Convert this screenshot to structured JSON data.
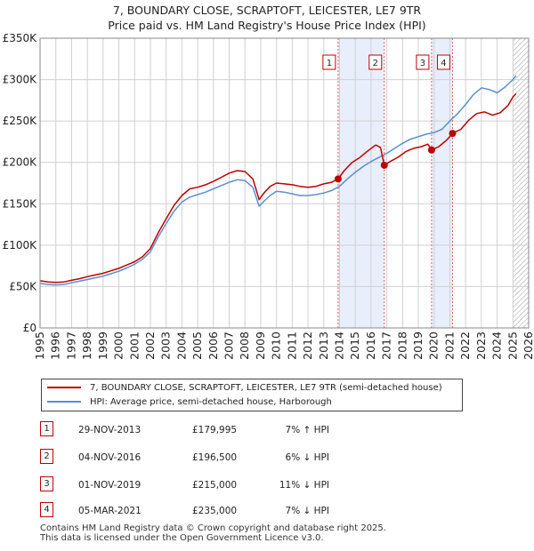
{
  "title_line1": "7, BOUNDARY CLOSE, SCRAPTOFT, LEICESTER, LE7 9TR",
  "title_line2": "Price paid vs. HM Land Registry's House Price Index (HPI)",
  "colors": {
    "property": "#c00000",
    "hpi": "#5b8fd0",
    "band": "#e8eefb",
    "marker_line": "#e06060",
    "grid": "#d0d0d0"
  },
  "chart_data": {
    "type": "line",
    "xlim": [
      1995,
      2026
    ],
    "ylim": [
      0,
      350000
    ],
    "x_ticks": [
      "1995",
      "1996",
      "1997",
      "1998",
      "1999",
      "2000",
      "2001",
      "2002",
      "2003",
      "2004",
      "2005",
      "2006",
      "2007",
      "2008",
      "2009",
      "2010",
      "2011",
      "2012",
      "2013",
      "2014",
      "2015",
      "2016",
      "2017",
      "2018",
      "2019",
      "2020",
      "2021",
      "2022",
      "2023",
      "2024",
      "2025",
      "2026"
    ],
    "y_ticks": [
      {
        "value": 0,
        "label": "£0"
      },
      {
        "value": 50000,
        "label": "£50K"
      },
      {
        "value": 100000,
        "label": "£100K"
      },
      {
        "value": 150000,
        "label": "£150K"
      },
      {
        "value": 200000,
        "label": "£200K"
      },
      {
        "value": 250000,
        "label": "£250K"
      },
      {
        "value": 300000,
        "label": "£300K"
      },
      {
        "value": 350000,
        "label": "£350K"
      }
    ],
    "series": [
      {
        "name": "7, BOUNDARY CLOSE, SCRAPTOFT, LEICESTER, LE7 9TR (semi-detached house)",
        "color": "#c00000",
        "points": [
          [
            1995.0,
            57000
          ],
          [
            1995.5,
            55500
          ],
          [
            1996.0,
            55000
          ],
          [
            1996.5,
            55500
          ],
          [
            1997.0,
            57500
          ],
          [
            1997.5,
            59500
          ],
          [
            1998.0,
            62000
          ],
          [
            1998.5,
            64000
          ],
          [
            1999.0,
            66000
          ],
          [
            1999.5,
            69000
          ],
          [
            2000.0,
            72000
          ],
          [
            2000.5,
            76000
          ],
          [
            2001.0,
            80000
          ],
          [
            2001.5,
            86000
          ],
          [
            2002.0,
            96000
          ],
          [
            2002.5,
            115000
          ],
          [
            2003.0,
            132000
          ],
          [
            2003.5,
            148000
          ],
          [
            2004.0,
            160000
          ],
          [
            2004.5,
            168000
          ],
          [
            2005.0,
            170000
          ],
          [
            2005.5,
            173000
          ],
          [
            2006.0,
            177000
          ],
          [
            2006.5,
            182000
          ],
          [
            2007.0,
            187000
          ],
          [
            2007.5,
            190000
          ],
          [
            2008.0,
            189000
          ],
          [
            2008.5,
            180000
          ],
          [
            2008.9,
            155000
          ],
          [
            2009.2,
            163000
          ],
          [
            2009.6,
            171000
          ],
          [
            2010.0,
            175000
          ],
          [
            2010.5,
            174000
          ],
          [
            2011.0,
            173000
          ],
          [
            2011.5,
            171000
          ],
          [
            2012.0,
            170000
          ],
          [
            2012.5,
            171000
          ],
          [
            2013.0,
            174000
          ],
          [
            2013.5,
            176000
          ],
          [
            2013.91,
            179995
          ],
          [
            2014.3,
            190000
          ],
          [
            2014.8,
            200000
          ],
          [
            2015.3,
            206000
          ],
          [
            2015.8,
            214000
          ],
          [
            2016.3,
            221000
          ],
          [
            2016.6,
            218000
          ],
          [
            2016.84,
            196500
          ],
          [
            2017.2,
            201000
          ],
          [
            2017.7,
            206000
          ],
          [
            2018.2,
            213000
          ],
          [
            2018.7,
            217000
          ],
          [
            2019.2,
            219000
          ],
          [
            2019.6,
            222000
          ],
          [
            2019.84,
            215000
          ],
          [
            2020.3,
            219000
          ],
          [
            2020.8,
            227000
          ],
          [
            2021.17,
            235000
          ],
          [
            2021.7,
            240000
          ],
          [
            2022.2,
            251000
          ],
          [
            2022.7,
            259000
          ],
          [
            2023.2,
            261000
          ],
          [
            2023.7,
            257000
          ],
          [
            2024.2,
            260000
          ],
          [
            2024.7,
            269000
          ],
          [
            2025.0,
            279000
          ],
          [
            2025.2,
            283000
          ]
        ]
      },
      {
        "name": "HPI: Average price, semi-detached house, Harborough",
        "color": "#5b8fd0",
        "points": [
          [
            1995.0,
            54000
          ],
          [
            1995.5,
            52500
          ],
          [
            1996.0,
            52000
          ],
          [
            1996.5,
            52500
          ],
          [
            1997.0,
            54500
          ],
          [
            1997.5,
            56500
          ],
          [
            1998.0,
            58500
          ],
          [
            1998.5,
            60500
          ],
          [
            1999.0,
            62500
          ],
          [
            1999.5,
            65500
          ],
          [
            2000.0,
            68500
          ],
          [
            2000.5,
            72500
          ],
          [
            2001.0,
            77000
          ],
          [
            2001.5,
            83000
          ],
          [
            2002.0,
            92000
          ],
          [
            2002.5,
            110000
          ],
          [
            2003.0,
            126000
          ],
          [
            2003.5,
            141000
          ],
          [
            2004.0,
            152000
          ],
          [
            2004.5,
            158000
          ],
          [
            2005.0,
            161000
          ],
          [
            2005.5,
            164000
          ],
          [
            2006.0,
            168000
          ],
          [
            2006.5,
            172000
          ],
          [
            2007.0,
            176000
          ],
          [
            2007.5,
            179000
          ],
          [
            2008.0,
            178000
          ],
          [
            2008.5,
            170000
          ],
          [
            2008.9,
            147000
          ],
          [
            2009.2,
            153000
          ],
          [
            2009.6,
            160000
          ],
          [
            2010.0,
            165000
          ],
          [
            2010.5,
            164000
          ],
          [
            2011.0,
            162000
          ],
          [
            2011.5,
            160000
          ],
          [
            2012.0,
            160000
          ],
          [
            2012.5,
            161000
          ],
          [
            2013.0,
            163000
          ],
          [
            2013.5,
            166000
          ],
          [
            2014.0,
            171000
          ],
          [
            2014.5,
            180000
          ],
          [
            2015.0,
            188000
          ],
          [
            2015.5,
            195000
          ],
          [
            2016.0,
            201000
          ],
          [
            2016.5,
            206000
          ],
          [
            2017.0,
            211000
          ],
          [
            2017.5,
            217000
          ],
          [
            2018.0,
            223000
          ],
          [
            2018.5,
            228000
          ],
          [
            2019.0,
            231000
          ],
          [
            2019.5,
            234000
          ],
          [
            2020.0,
            236000
          ],
          [
            2020.5,
            240000
          ],
          [
            2021.0,
            250000
          ],
          [
            2021.5,
            259000
          ],
          [
            2022.0,
            270000
          ],
          [
            2022.5,
            282000
          ],
          [
            2023.0,
            290000
          ],
          [
            2023.5,
            288000
          ],
          [
            2024.0,
            284000
          ],
          [
            2024.5,
            291000
          ],
          [
            2025.0,
            300000
          ],
          [
            2025.2,
            305000
          ]
        ]
      }
    ],
    "sales": [
      {
        "num": "1",
        "x": 2013.91,
        "value": 179995,
        "date": "29-NOV-2013",
        "price": "£179,995",
        "hpi": "7% ↑ HPI"
      },
      {
        "num": "2",
        "x": 2016.84,
        "value": 196500,
        "date": "04-NOV-2016",
        "price": "£196,500",
        "hpi": "6% ↓ HPI"
      },
      {
        "num": "3",
        "x": 2019.84,
        "value": 215000,
        "date": "01-NOV-2019",
        "price": "£215,000",
        "hpi": "11% ↓ HPI"
      },
      {
        "num": "4",
        "x": 2021.17,
        "value": 235000,
        "date": "05-MAR-2021",
        "price": "£235,000",
        "hpi": "7% ↓ HPI"
      }
    ],
    "shaded_ranges": [
      [
        2013.91,
        2016.84
      ],
      [
        2019.84,
        2021.17
      ]
    ],
    "hatched_from": 2025.0
  },
  "legend": {
    "property_label": "7, BOUNDARY CLOSE, SCRAPTOFT, LEICESTER, LE7 9TR (semi-detached house)",
    "hpi_label": "HPI: Average price, semi-detached house, Harborough"
  },
  "footer_line1": "Contains HM Land Registry data © Crown copyright and database right 2025.",
  "footer_line2": "This data is licensed under the Open Government Licence v3.0."
}
